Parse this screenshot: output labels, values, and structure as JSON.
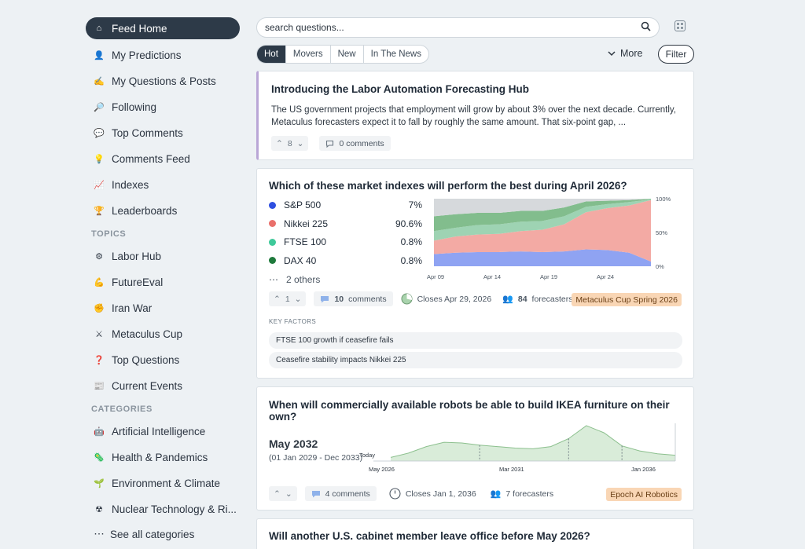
{
  "sidebar": {
    "main": [
      {
        "label": "Feed Home",
        "icon": "home-icon",
        "glyph": "⌂",
        "active": true
      },
      {
        "label": "My Predictions",
        "icon": "person-icon",
        "glyph": "👤"
      },
      {
        "label": "My Questions & Posts",
        "icon": "pencil-icon",
        "glyph": "✍"
      },
      {
        "label": "Following",
        "icon": "magnifier-icon",
        "glyph": "🔎"
      },
      {
        "label": "Top Comments",
        "icon": "speech-bubble-icon",
        "glyph": "💬"
      },
      {
        "label": "Comments Feed",
        "icon": "lightbulb-icon",
        "glyph": "💡"
      },
      {
        "label": "Indexes",
        "icon": "chart-icon",
        "glyph": "📈"
      },
      {
        "label": "Leaderboards",
        "icon": "trophy-icon",
        "glyph": "🏆"
      }
    ],
    "topics_header": "TOPICS",
    "topics": [
      {
        "label": "Labor Hub",
        "icon": "gear-icon",
        "glyph": "⚙"
      },
      {
        "label": "FutureEval",
        "icon": "flexed-arm-icon",
        "glyph": "💪"
      },
      {
        "label": "Iran War",
        "icon": "fist-icon",
        "glyph": "✊"
      },
      {
        "label": "Metaculus Cup",
        "icon": "crossed-swords-icon",
        "glyph": "⚔"
      },
      {
        "label": "Top Questions",
        "icon": "question-mark-icon",
        "glyph": "❓"
      },
      {
        "label": "Current Events",
        "icon": "newspaper-icon",
        "glyph": "📰"
      }
    ],
    "categories_header": "CATEGORIES",
    "categories": [
      {
        "label": "Artificial Intelligence",
        "icon": "robot-icon",
        "glyph": "🤖"
      },
      {
        "label": "Health & Pandemics",
        "icon": "virus-icon",
        "glyph": "🦠"
      },
      {
        "label": "Environment & Climate",
        "icon": "seedling-icon",
        "glyph": "🌱"
      },
      {
        "label": "Nuclear Technology & Ri...",
        "icon": "radiation-icon",
        "glyph": "☢"
      }
    ],
    "see_all": "See all categories",
    "see_all_glyph": "⋯"
  },
  "search": {
    "placeholder": "search questions...",
    "icon": "search-icon"
  },
  "feed_tabs": [
    "Hot",
    "Movers",
    "New",
    "In The News"
  ],
  "more_label": "More",
  "filter_label": "Filter",
  "post1": {
    "title": "Introducing the Labor Automation Forecasting Hub",
    "body": "The US government projects that employment will grow by about 3% over the next decade. Currently, Metaculus forecasters expect it to fall by roughly the same amount. That six-point gap, ...",
    "votes": "8",
    "comments": "0 comments",
    "accent": "#b9a6d6"
  },
  "q1": {
    "title": "Which of these market indexes will perform the best during April 2026?",
    "options": [
      {
        "name": "S&P 500",
        "value": "7%",
        "color": "#2f4fe0"
      },
      {
        "name": "Nikkei 225",
        "value": "90.6%",
        "color": "#e9706b"
      },
      {
        "name": "FTSE 100",
        "value": "0.8%",
        "color": "#3fc99a"
      },
      {
        "name": "DAX 40",
        "value": "0.8%",
        "color": "#1f7a3c"
      }
    ],
    "others": "2 others",
    "votes": "1",
    "comments_count": "10",
    "comments_word": "comments",
    "closes": "Closes Apr 29, 2026",
    "forecasters_count": "84",
    "forecasters_word": "forecasters",
    "tag": "Metaculus Cup Spring 2026",
    "key_factors_title": "KEY FACTORS",
    "key_factors": [
      "FTSE 100 growth if ceasefire fails",
      "Ceasefire stability impacts Nikkei 225"
    ]
  },
  "q2": {
    "title": "When will commercially available robots be able to build IKEA furniture on their own?",
    "value": "May 2032",
    "range": "(01 Jan 2029 - Dec 2033)",
    "today_label": "Today",
    "votes": "",
    "comments": "4 comments",
    "closes": "Closes Jan 1, 2036",
    "forecasters": "7 forecasters",
    "tag": "Epoch AI Robotics"
  },
  "q3": {
    "title": "Will another U.S. cabinet member leave office before May 2026?"
  },
  "chart_data": [
    {
      "type": "area",
      "stacked": true,
      "x_ticks": [
        "Apr 09",
        "Apr 14",
        "Apr 19",
        "Apr 24"
      ],
      "y_ticks": [
        "100%",
        "50%",
        "0%"
      ],
      "ylim": [
        0,
        100
      ],
      "x": [
        "Apr 09",
        "Apr 11",
        "Apr 13",
        "Apr 15",
        "Apr 17",
        "Apr 19",
        "Apr 21",
        "Apr 23",
        "Apr 25",
        "Apr 27",
        "Apr 29"
      ],
      "series": [
        {
          "name": "S&P 500",
          "color": "#8fa3f2",
          "values": [
            18,
            20,
            21,
            21,
            22,
            21,
            22,
            25,
            24,
            20,
            7
          ]
        },
        {
          "name": "Nikkei 225",
          "color": "#f3aaa4",
          "values": [
            20,
            24,
            26,
            27,
            30,
            33,
            40,
            55,
            62,
            70,
            91
          ]
        },
        {
          "name": "FTSE 100",
          "color": "#9ed3b3",
          "values": [
            14,
            13,
            14,
            14,
            14,
            13,
            12,
            8,
            6,
            5,
            1
          ]
        },
        {
          "name": "DAX 40",
          "color": "#82bd8d",
          "values": [
            22,
            20,
            18,
            17,
            16,
            15,
            13,
            8,
            5,
            3,
            1
          ]
        },
        {
          "name": "Other",
          "color": "#d6d9dc",
          "values": [
            26,
            23,
            21,
            21,
            18,
            18,
            13,
            4,
            3,
            2,
            0
          ]
        }
      ]
    },
    {
      "type": "area",
      "x_ticks": [
        "May 2026",
        "Mar 2031",
        "Jan 2036"
      ],
      "x": [
        0,
        1,
        2,
        3,
        4,
        5,
        6,
        7,
        8,
        9,
        10,
        11,
        12,
        13,
        14,
        15,
        16
      ],
      "values": [
        0.1,
        0.22,
        0.4,
        0.52,
        0.5,
        0.44,
        0.4,
        0.36,
        0.34,
        0.4,
        0.62,
        0.98,
        0.78,
        0.42,
        0.28,
        0.2,
        0.16
      ],
      "ylim": [
        0,
        1
      ]
    }
  ]
}
